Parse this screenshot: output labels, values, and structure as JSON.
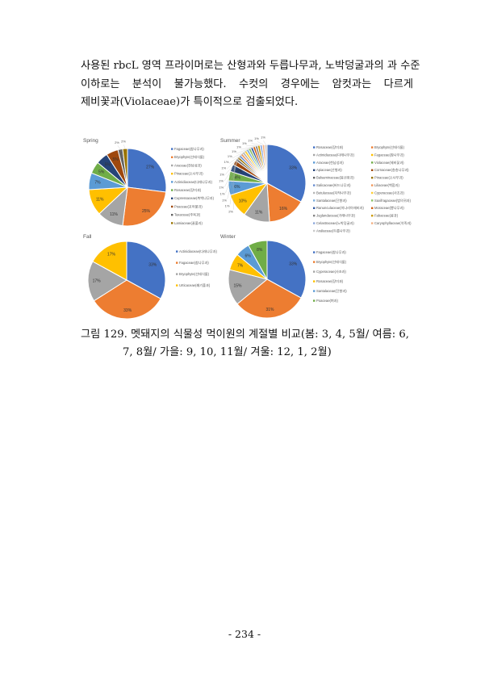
{
  "body_text": {
    "lines": [
      "사용된 rbcL 영역 프라이머로는 산형과와 두릅나무과, 노박덩굴과의 과 수준",
      "이하로는 분석이 불가능했다. 수컷의 경우에는 암컷과는 다르게",
      "제비꽃과(Violaceae)가 특이적으로 검출되었다."
    ]
  },
  "caption": {
    "line1": "그림 129. 멧돼지의 식물성 먹이원의 계절별 비교(봄: 3, 4, 5월/ 여름: 6,",
    "line2": "7, 8월/ 가을: 9, 10, 11월/ 겨울: 12, 1, 2월)"
  },
  "page_number": "- 234 -",
  "chart_data": [
    {
      "type": "pie",
      "title": "Spring",
      "legend_position": "right",
      "labels": [
        "Fagaceae(참나무과)",
        "Bryophyte(선태식물)",
        "Araceae(천남성과)",
        "Pinaceae(소나무과)",
        "Actinidiaceae(다래나무과)",
        "Rosaceae(장미과)",
        "Cupressaceae(측백나무과)",
        "Poaceae(포아풀과)",
        "Taxaceae(주목과)",
        "Lamiaceae(꿀풀과)"
      ],
      "values": [
        27,
        25,
        11,
        11,
        7,
        5,
        5,
        5,
        2,
        2
      ]
    },
    {
      "type": "pie",
      "title": "Summer",
      "legend_position": "right",
      "labels": [
        "Rosaceae(장미과)",
        "Bryophyte(선태식물)",
        "Actinidiaceae(다래나무과)",
        "Fagaceae(참나무과)",
        "Araceae(천남성과)",
        "Violaceae(제비꽃과)",
        "Apiaceae(산형과)",
        "Cornaceae(층층나무과)",
        "Balsaminaceae(봉선화과)",
        "Pinaceae(소나무과)",
        "Salicaceae(버드나무과)",
        "Liliaceae(백합과)",
        "Betulaceae(자작나무과)",
        "Cyperaceae(사초과)",
        "Santalaceae(단향과)",
        "Saxifragaceae(범의귀과)",
        "Ranunculaceae(미나리아재비과)",
        "Moraceae(뽕나무과)",
        "Juglandaceae(가래나무과)",
        "Fabaceae(콩과)",
        "Celastraceae(노박덩굴과)",
        "Caryophyllaceae(석죽과)",
        "Araliaceae(두릅나무과)"
      ],
      "values": [
        33,
        16,
        11,
        10,
        6,
        4,
        3,
        2,
        1,
        1,
        1,
        1,
        1,
        1,
        1,
        1,
        1,
        1,
        1,
        1,
        1,
        1,
        1
      ]
    },
    {
      "type": "pie",
      "title": "Fall",
      "legend_position": "right",
      "labels": [
        "Actinidiaceae(다래나무과)",
        "Fagaceae(참나무과)",
        "Bryophyte(선태식물)",
        "Urticaceae(쐐기풀과)"
      ],
      "values": [
        33,
        33,
        17,
        17
      ]
    },
    {
      "type": "pie",
      "title": "Winter",
      "legend_position": "right",
      "labels": [
        "Fagaceae(참나무과)",
        "Bryophyte(선태식물)",
        "Cyperaceae(사초과)",
        "Rosaceae(장미과)",
        "Santalaceae(단향과)",
        "Poaceae(벼과)"
      ],
      "values": [
        33,
        31,
        15,
        7,
        6,
        8
      ]
    }
  ],
  "colors": [
    "#4472C4",
    "#ED7D31",
    "#A5A5A5",
    "#FFC000",
    "#5B9BD5",
    "#70AD47",
    "#264478",
    "#9E480E",
    "#636363",
    "#997300",
    "#698ED0",
    "#F1975A",
    "#B7B7B7",
    "#FFCD33",
    "#7CAFDD",
    "#8CC168",
    "#335AA1",
    "#D26012",
    "#848484",
    "#CC9A00",
    "#8FAADC",
    "#F4B183",
    "#C9C9C9"
  ]
}
